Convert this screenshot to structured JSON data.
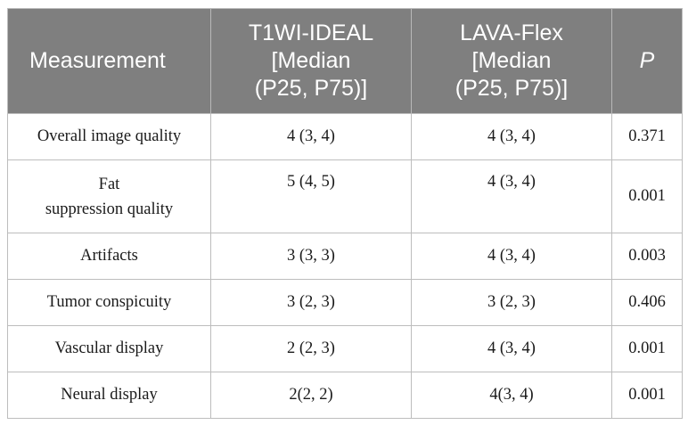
{
  "table": {
    "headers": [
      {
        "lines": [
          "Measurement"
        ]
      },
      {
        "lines": [
          "T1WI-IDEAL",
          "[Median",
          "(P25, P75)]"
        ]
      },
      {
        "lines": [
          "LAVA-Flex",
          "[Median",
          "(P25, P75)]"
        ]
      },
      {
        "lines": [
          "P"
        ]
      }
    ],
    "rows": [
      {
        "measurement": [
          "Overall image quality"
        ],
        "t1wi_ideal": "4 (3, 4)",
        "lava_flex": "4 (3, 4)",
        "p": "0.371"
      },
      {
        "measurement": [
          "Fat",
          "suppression quality"
        ],
        "t1wi_ideal": "5 (4, 5)",
        "lava_flex": "4 (3, 4)",
        "p": "0.001"
      },
      {
        "measurement": [
          "Artifacts"
        ],
        "t1wi_ideal": "3 (3, 3)",
        "lava_flex": "4 (3, 4)",
        "p": "0.003"
      },
      {
        "measurement": [
          "Tumor conspicuity"
        ],
        "t1wi_ideal": "3 (2, 3)",
        "lava_flex": "3 (2, 3)",
        "p": "0.406"
      },
      {
        "measurement": [
          "Vascular display"
        ],
        "t1wi_ideal": "2 (2, 3)",
        "lava_flex": "4 (3, 4)",
        "p": "0.001"
      },
      {
        "measurement": [
          "Neural display"
        ],
        "t1wi_ideal": "2(2, 2)",
        "lava_flex": "4(3, 4)",
        "p": "0.001"
      }
    ]
  }
}
